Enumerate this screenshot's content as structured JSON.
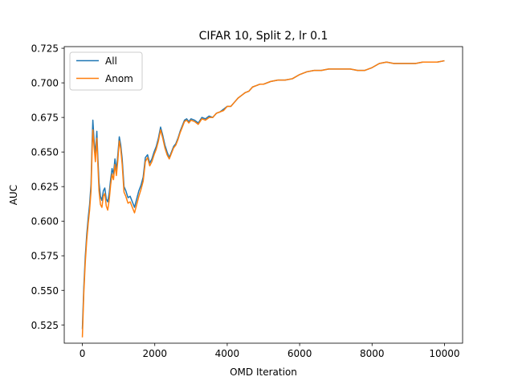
{
  "chart_data": {
    "type": "line",
    "title": "CIFAR 10, Split 2, lr 0.1",
    "xlabel": "OMD Iteration",
    "ylabel": "AUC",
    "xlim": [
      -500,
      10500
    ],
    "ylim": [
      0.5118,
      0.7262
    ],
    "grid": false,
    "legend": "top-left",
    "xticks": [
      0,
      2000,
      4000,
      6000,
      8000,
      10000
    ],
    "xtick_labels": [
      "0",
      "2000",
      "4000",
      "6000",
      "8000",
      "10000"
    ],
    "yticks": [
      0.525,
      0.55,
      0.575,
      0.6,
      0.625,
      0.65,
      0.675,
      0.7,
      0.725
    ],
    "ytick_labels": [
      "0.525",
      "0.550",
      "0.575",
      "0.600",
      "0.625",
      "0.650",
      "0.675",
      "0.700",
      "0.725"
    ],
    "series": [
      {
        "name": "All",
        "color": "#1f77b4",
        "points": [
          [
            0,
            0.522
          ],
          [
            40,
            0.552
          ],
          [
            80,
            0.574
          ],
          [
            120,
            0.59
          ],
          [
            160,
            0.602
          ],
          [
            200,
            0.612
          ],
          [
            240,
            0.627
          ],
          [
            270,
            0.658
          ],
          [
            290,
            0.673
          ],
          [
            320,
            0.66
          ],
          [
            360,
            0.648
          ],
          [
            400,
            0.665
          ],
          [
            430,
            0.645
          ],
          [
            460,
            0.628
          ],
          [
            500,
            0.618
          ],
          [
            540,
            0.615
          ],
          [
            580,
            0.622
          ],
          [
            620,
            0.624
          ],
          [
            660,
            0.616
          ],
          [
            700,
            0.614
          ],
          [
            740,
            0.62
          ],
          [
            780,
            0.63
          ],
          [
            820,
            0.638
          ],
          [
            860,
            0.634
          ],
          [
            900,
            0.645
          ],
          [
            940,
            0.637
          ],
          [
            980,
            0.648
          ],
          [
            1020,
            0.661
          ],
          [
            1060,
            0.655
          ],
          [
            1100,
            0.645
          ],
          [
            1150,
            0.625
          ],
          [
            1200,
            0.622
          ],
          [
            1260,
            0.617
          ],
          [
            1320,
            0.618
          ],
          [
            1380,
            0.614
          ],
          [
            1440,
            0.61
          ],
          [
            1500,
            0.616
          ],
          [
            1560,
            0.622
          ],
          [
            1620,
            0.626
          ],
          [
            1680,
            0.632
          ],
          [
            1740,
            0.646
          ],
          [
            1800,
            0.648
          ],
          [
            1860,
            0.642
          ],
          [
            1920,
            0.645
          ],
          [
            1980,
            0.65
          ],
          [
            2040,
            0.654
          ],
          [
            2100,
            0.66
          ],
          [
            2160,
            0.668
          ],
          [
            2220,
            0.662
          ],
          [
            2280,
            0.655
          ],
          [
            2340,
            0.65
          ],
          [
            2400,
            0.646
          ],
          [
            2460,
            0.65
          ],
          [
            2520,
            0.654
          ],
          [
            2580,
            0.656
          ],
          [
            2640,
            0.66
          ],
          [
            2700,
            0.665
          ],
          [
            2760,
            0.669
          ],
          [
            2820,
            0.673
          ],
          [
            2880,
            0.674
          ],
          [
            2940,
            0.672
          ],
          [
            3000,
            0.674
          ],
          [
            3100,
            0.673
          ],
          [
            3200,
            0.671
          ],
          [
            3300,
            0.675
          ],
          [
            3400,
            0.674
          ],
          [
            3500,
            0.676
          ],
          [
            3600,
            0.675
          ],
          [
            3700,
            0.678
          ],
          [
            3800,
            0.679
          ],
          [
            3900,
            0.681
          ],
          [
            4000,
            0.683
          ],
          [
            4100,
            0.683
          ],
          [
            4200,
            0.686
          ],
          [
            4300,
            0.689
          ],
          [
            4400,
            0.691
          ],
          [
            4500,
            0.693
          ],
          [
            4600,
            0.694
          ],
          [
            4700,
            0.697
          ],
          [
            4800,
            0.698
          ],
          [
            4900,
            0.699
          ],
          [
            5000,
            0.699
          ],
          [
            5200,
            0.701
          ],
          [
            5400,
            0.702
          ],
          [
            5600,
            0.702
          ],
          [
            5800,
            0.703
          ],
          [
            6000,
            0.706
          ],
          [
            6200,
            0.708
          ],
          [
            6400,
            0.709
          ],
          [
            6600,
            0.709
          ],
          [
            6800,
            0.71
          ],
          [
            7000,
            0.71
          ],
          [
            7200,
            0.71
          ],
          [
            7400,
            0.71
          ],
          [
            7600,
            0.709
          ],
          [
            7800,
            0.709
          ],
          [
            8000,
            0.711
          ],
          [
            8200,
            0.714
          ],
          [
            8400,
            0.715
          ],
          [
            8600,
            0.714
          ],
          [
            8800,
            0.714
          ],
          [
            9000,
            0.714
          ],
          [
            9200,
            0.714
          ],
          [
            9400,
            0.715
          ],
          [
            9600,
            0.715
          ],
          [
            9800,
            0.715
          ],
          [
            10000,
            0.716
          ]
        ]
      },
      {
        "name": "Anom",
        "color": "#ff7f0e",
        "points": [
          [
            0,
            0.516
          ],
          [
            40,
            0.548
          ],
          [
            80,
            0.57
          ],
          [
            120,
            0.586
          ],
          [
            160,
            0.598
          ],
          [
            200,
            0.608
          ],
          [
            240,
            0.622
          ],
          [
            270,
            0.652
          ],
          [
            290,
            0.666
          ],
          [
            320,
            0.655
          ],
          [
            360,
            0.643
          ],
          [
            400,
            0.66
          ],
          [
            430,
            0.64
          ],
          [
            460,
            0.622
          ],
          [
            500,
            0.612
          ],
          [
            540,
            0.61
          ],
          [
            580,
            0.618
          ],
          [
            620,
            0.62
          ],
          [
            660,
            0.611
          ],
          [
            700,
            0.608
          ],
          [
            740,
            0.615
          ],
          [
            780,
            0.626
          ],
          [
            820,
            0.634
          ],
          [
            860,
            0.63
          ],
          [
            900,
            0.641
          ],
          [
            940,
            0.633
          ],
          [
            980,
            0.644
          ],
          [
            1020,
            0.658
          ],
          [
            1060,
            0.652
          ],
          [
            1100,
            0.641
          ],
          [
            1150,
            0.621
          ],
          [
            1200,
            0.618
          ],
          [
            1260,
            0.613
          ],
          [
            1320,
            0.614
          ],
          [
            1380,
            0.61
          ],
          [
            1440,
            0.606
          ],
          [
            1500,
            0.612
          ],
          [
            1560,
            0.618
          ],
          [
            1620,
            0.623
          ],
          [
            1680,
            0.629
          ],
          [
            1740,
            0.643
          ],
          [
            1800,
            0.646
          ],
          [
            1860,
            0.64
          ],
          [
            1920,
            0.643
          ],
          [
            1980,
            0.648
          ],
          [
            2040,
            0.652
          ],
          [
            2100,
            0.658
          ],
          [
            2160,
            0.666
          ],
          [
            2220,
            0.66
          ],
          [
            2280,
            0.653
          ],
          [
            2340,
            0.648
          ],
          [
            2400,
            0.645
          ],
          [
            2460,
            0.649
          ],
          [
            2520,
            0.653
          ],
          [
            2580,
            0.655
          ],
          [
            2640,
            0.659
          ],
          [
            2700,
            0.664
          ],
          [
            2760,
            0.668
          ],
          [
            2820,
            0.672
          ],
          [
            2880,
            0.673
          ],
          [
            2940,
            0.671
          ],
          [
            3000,
            0.673
          ],
          [
            3100,
            0.672
          ],
          [
            3200,
            0.67
          ],
          [
            3300,
            0.674
          ],
          [
            3400,
            0.673
          ],
          [
            3500,
            0.675
          ],
          [
            3600,
            0.675
          ],
          [
            3700,
            0.678
          ],
          [
            3800,
            0.679
          ],
          [
            3900,
            0.68
          ],
          [
            4000,
            0.683
          ],
          [
            4100,
            0.683
          ],
          [
            4200,
            0.686
          ],
          [
            4300,
            0.689
          ],
          [
            4400,
            0.691
          ],
          [
            4500,
            0.693
          ],
          [
            4600,
            0.694
          ],
          [
            4700,
            0.697
          ],
          [
            4800,
            0.698
          ],
          [
            4900,
            0.699
          ],
          [
            5000,
            0.699
          ],
          [
            5200,
            0.701
          ],
          [
            5400,
            0.702
          ],
          [
            5600,
            0.702
          ],
          [
            5800,
            0.703
          ],
          [
            6000,
            0.706
          ],
          [
            6200,
            0.708
          ],
          [
            6400,
            0.709
          ],
          [
            6600,
            0.709
          ],
          [
            6800,
            0.71
          ],
          [
            7000,
            0.71
          ],
          [
            7200,
            0.71
          ],
          [
            7400,
            0.71
          ],
          [
            7600,
            0.709
          ],
          [
            7800,
            0.709
          ],
          [
            8000,
            0.711
          ],
          [
            8200,
            0.714
          ],
          [
            8400,
            0.715
          ],
          [
            8600,
            0.714
          ],
          [
            8800,
            0.714
          ],
          [
            9000,
            0.714
          ],
          [
            9200,
            0.714
          ],
          [
            9400,
            0.715
          ],
          [
            9600,
            0.715
          ],
          [
            9800,
            0.715
          ],
          [
            10000,
            0.716
          ]
        ]
      }
    ]
  }
}
